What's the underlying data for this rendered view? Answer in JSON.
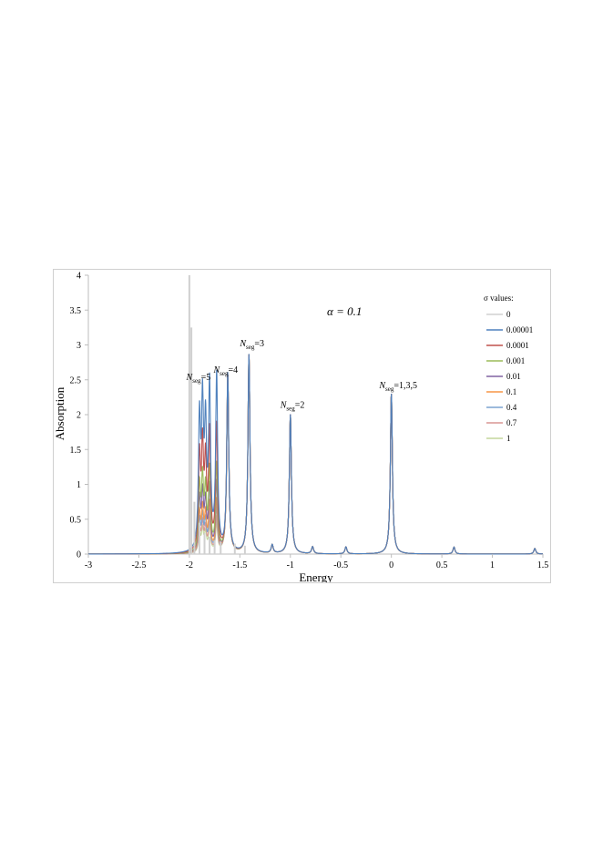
{
  "chart_data": {
    "type": "line",
    "title": "α = 0.1",
    "xlabel": "Energy",
    "ylabel": "Absorption",
    "xlim": [
      -3,
      1.5
    ],
    "ylim": [
      0,
      4
    ],
    "x_ticks": [
      "-3",
      "-2.5",
      "-2",
      "-1.5",
      "-1",
      "-0.5",
      "0",
      "0.5",
      "1",
      "1.5"
    ],
    "y_ticks": [
      "0",
      "0.5",
      "1",
      "1.5",
      "2",
      "2.5",
      "3",
      "3.5",
      "4"
    ],
    "legend_title": "σ values:",
    "legend_position": "right",
    "grid": false,
    "peak_width": 0.012,
    "baseline_peaks": [
      {
        "x": -1.9,
        "h": 1.82
      },
      {
        "x": -1.87,
        "h": 1.95
      },
      {
        "x": -1.84,
        "h": 1.65
      },
      {
        "x": -1.8,
        "h": 2.3
      },
      {
        "x": -1.73,
        "h": 2.5
      },
      {
        "x": -1.62,
        "h": 2.55
      },
      {
        "x": -1.41,
        "h": 2.85
      },
      {
        "x": -1.18,
        "h": 0.12
      },
      {
        "x": -1.0,
        "h": 2.0
      },
      {
        "x": -0.78,
        "h": 0.1
      },
      {
        "x": -0.45,
        "h": 0.1
      },
      {
        "x": 0.0,
        "h": 2.3
      },
      {
        "x": 0.62,
        "h": 0.1
      },
      {
        "x": 1.42,
        "h": 0.08
      }
    ],
    "series": [
      {
        "name": "0",
        "color": "#d0d0d0",
        "sticks": [
          {
            "x": -2.0,
            "y": 4.0
          },
          {
            "x": -1.98,
            "y": 3.25
          },
          {
            "x": -1.95,
            "y": 0.75
          },
          {
            "x": -1.9,
            "y": 0.45
          },
          {
            "x": -1.85,
            "y": 0.3
          },
          {
            "x": -1.8,
            "y": 0.25
          },
          {
            "x": -1.75,
            "y": 0.2
          },
          {
            "x": -1.69,
            "y": 0.18
          },
          {
            "x": -1.55,
            "y": 0.15
          },
          {
            "x": -1.45,
            "y": 0.12
          }
        ]
      },
      {
        "name": "0.00001",
        "color": "#4f81bd",
        "scale": 1.0
      },
      {
        "name": "0.0001",
        "color": "#c0504d",
        "scale": 0.72
      },
      {
        "name": "0.001",
        "color": "#9bbb59",
        "scale": 0.5
      },
      {
        "name": "0.01",
        "color": "#8064a2",
        "scale": 0.4
      },
      {
        "name": "0.1",
        "color": "#f79646",
        "scale": 0.3
      },
      {
        "name": "0.4",
        "color": "#7ba3d0",
        "scale": 0.25
      },
      {
        "name": "0.7",
        "color": "#d99694",
        "scale": 0.2
      },
      {
        "name": "1",
        "color": "#c3d69b",
        "scale": 0.16
      }
    ],
    "annotations": [
      {
        "base": "N",
        "sub": "seg",
        "suffix": "=5",
        "x": -2.03,
        "y": 2.5
      },
      {
        "base": "N",
        "sub": "seg",
        "suffix": "=4",
        "x": -1.76,
        "y": 2.6
      },
      {
        "base": "N",
        "sub": "seg",
        "suffix": "=3",
        "x": -1.5,
        "y": 2.98
      },
      {
        "base": "N",
        "sub": "seg",
        "suffix": "=2",
        "x": -1.1,
        "y": 2.1
      },
      {
        "base": "N",
        "sub": "seg",
        "suffix": "=1,3,5",
        "x": -0.12,
        "y": 2.38
      }
    ]
  }
}
